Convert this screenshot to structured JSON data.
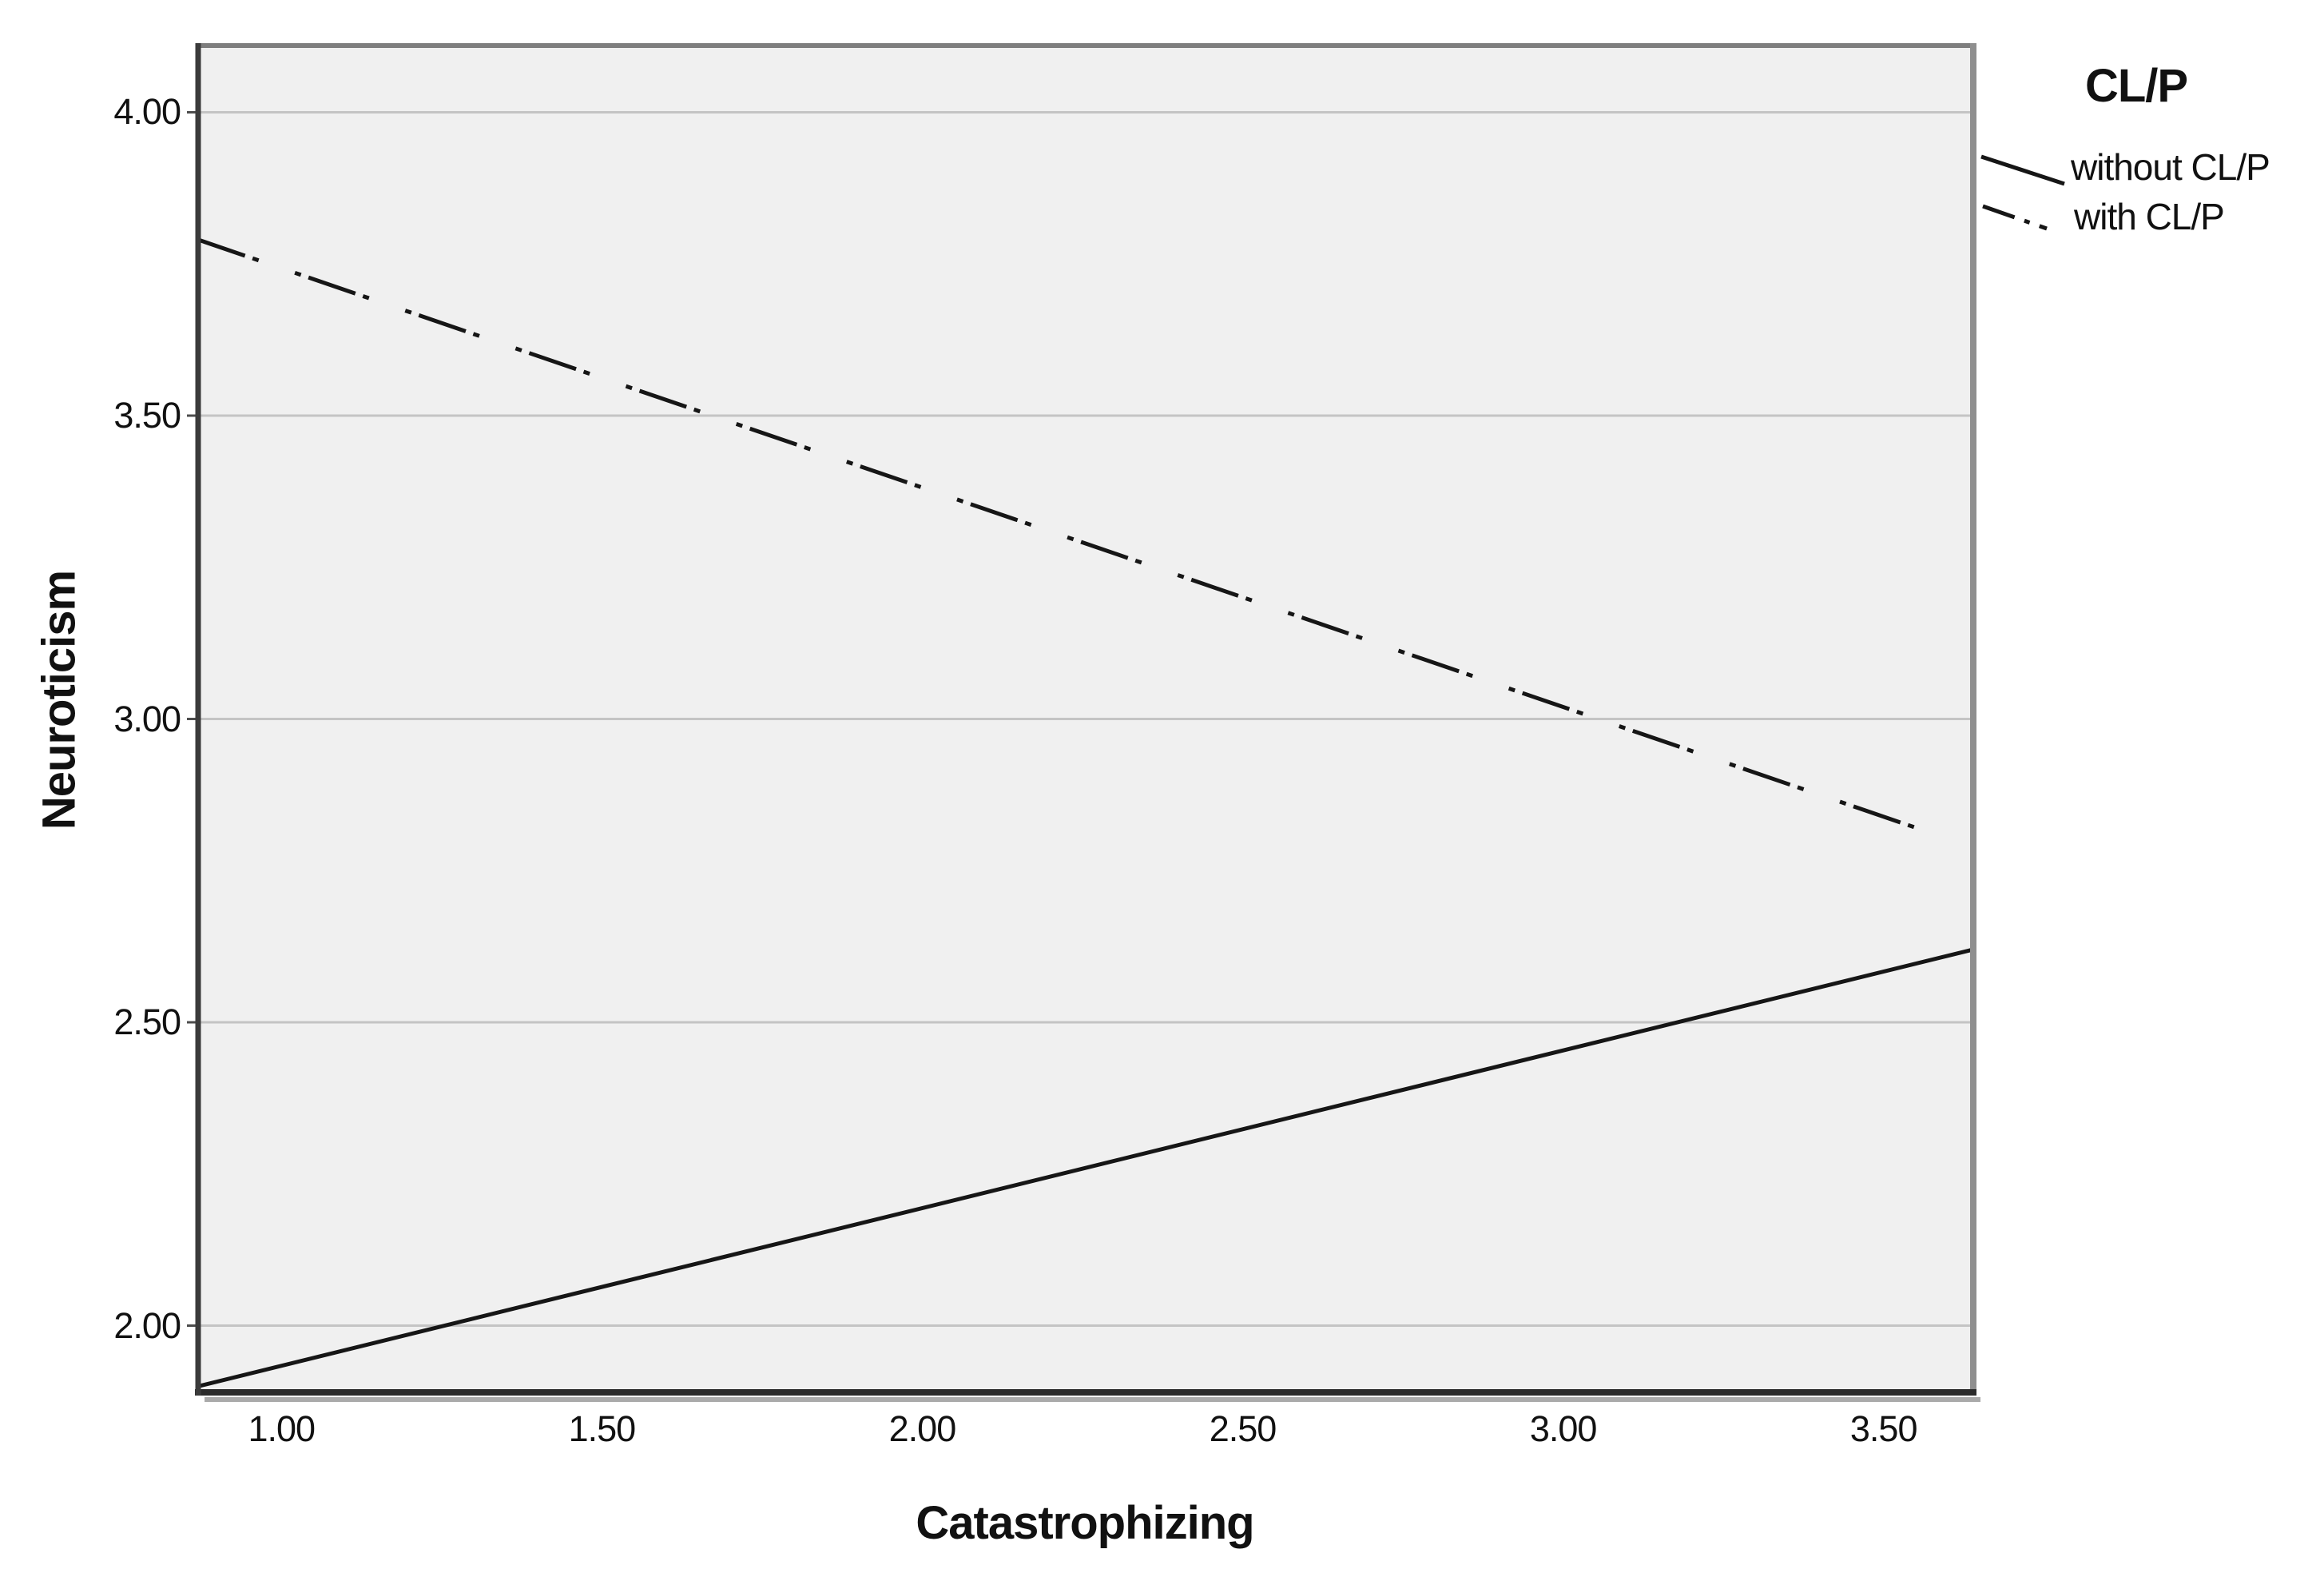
{
  "chart_data": {
    "type": "line",
    "title": "",
    "xlabel": "Catastrophizing",
    "ylabel": "Neuroticism",
    "xlim": [
      0.87,
      3.64
    ],
    "ylim": [
      1.89,
      4.11
    ],
    "xticks": [
      "1.00",
      "1.50",
      "2.00",
      "2.50",
      "3.00",
      "3.50"
    ],
    "xtick_values": [
      1.0,
      1.5,
      2.0,
      2.5,
      3.0,
      3.5
    ],
    "yticks": [
      "2.00",
      "2.50",
      "3.00",
      "3.50",
      "4.00"
    ],
    "ytick_values": [
      2.0,
      2.5,
      3.0,
      3.5,
      4.0
    ],
    "grid": "horizontal-only",
    "plot_bg": "#f0f0f0",
    "grid_color": "#c4c4c4",
    "line_color": "#161616",
    "legend": {
      "title": "CL/P",
      "position": "top-right-outside",
      "entries": [
        {
          "label": "without CL/P",
          "style": "solid"
        },
        {
          "label": "with CL/P",
          "style": "dash-dot"
        }
      ]
    },
    "series": [
      {
        "name": "without CL/P",
        "style": "solid",
        "points": [
          [
            0.87,
            1.9
          ],
          [
            3.64,
            2.62
          ]
        ]
      },
      {
        "name": "with CL/P",
        "style": "dash-dot",
        "points": [
          [
            0.87,
            3.79
          ],
          [
            3.58,
            2.81
          ]
        ]
      }
    ]
  }
}
